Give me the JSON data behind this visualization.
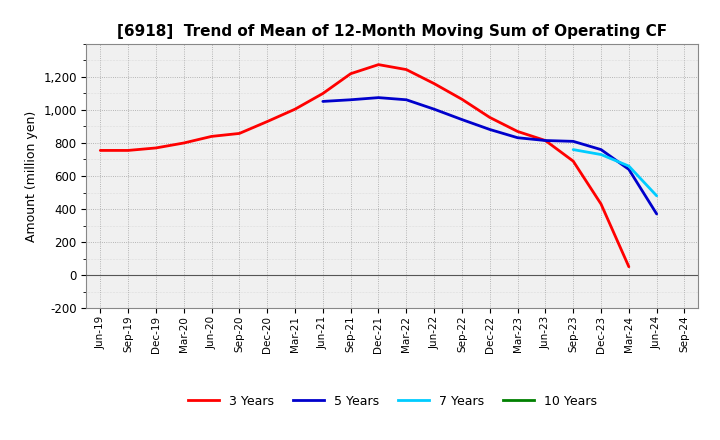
{
  "title": "[6918]  Trend of Mean of 12-Month Moving Sum of Operating CF",
  "ylabel": "Amount (million yen)",
  "background_color": "#ffffff",
  "plot_bg_color": "#f5f5f5",
  "ylim": [
    -200,
    1400
  ],
  "yticks": [
    -200,
    0,
    200,
    400,
    600,
    800,
    1000,
    1200
  ],
  "x_labels": [
    "Jun-19",
    "Sep-19",
    "Dec-19",
    "Mar-20",
    "Jun-20",
    "Sep-20",
    "Dec-20",
    "Mar-21",
    "Jun-21",
    "Sep-21",
    "Dec-21",
    "Mar-22",
    "Jun-22",
    "Sep-22",
    "Dec-22",
    "Mar-23",
    "Jun-23",
    "Sep-23",
    "Dec-23",
    "Mar-24",
    "Jun-24",
    "Sep-24"
  ],
  "series": {
    "3 Years": {
      "color": "#ff0000",
      "values": [
        755,
        755,
        770,
        800,
        840,
        858,
        930,
        1005,
        1100,
        1220,
        1275,
        1245,
        1160,
        1065,
        955,
        870,
        815,
        690,
        430,
        50,
        null,
        null
      ]
    },
    "5 Years": {
      "color": "#0000cc",
      "values": [
        null,
        null,
        null,
        null,
        null,
        null,
        null,
        null,
        1052,
        1062,
        1075,
        1062,
        1005,
        942,
        882,
        832,
        815,
        810,
        760,
        640,
        370,
        null
      ]
    },
    "7 Years": {
      "color": "#00ccff",
      "values": [
        null,
        null,
        null,
        null,
        null,
        null,
        null,
        null,
        null,
        null,
        null,
        null,
        null,
        null,
        null,
        null,
        null,
        760,
        730,
        660,
        480,
        null
      ]
    },
    "10 Years": {
      "color": "#008000",
      "values": [
        null,
        null,
        null,
        null,
        null,
        null,
        null,
        null,
        null,
        null,
        null,
        null,
        null,
        null,
        null,
        null,
        null,
        null,
        null,
        null,
        null,
        null
      ]
    }
  },
  "legend_entries": [
    "3 Years",
    "5 Years",
    "7 Years",
    "10 Years"
  ]
}
